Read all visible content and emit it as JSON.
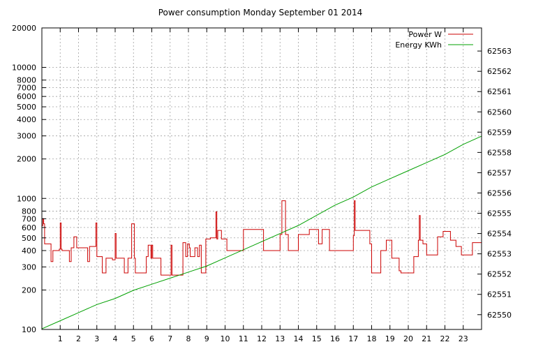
{
  "chart_data": {
    "type": "line",
    "title": "Power consumption Monday September 01 2014",
    "x": {
      "range": [
        0,
        24
      ],
      "ticks": [
        1,
        2,
        3,
        4,
        5,
        6,
        7,
        8,
        9,
        10,
        11,
        12,
        13,
        14,
        15,
        16,
        17,
        18,
        19,
        20,
        21,
        22,
        23
      ],
      "tick_labels": [
        "1",
        "2",
        "3",
        "4",
        "5",
        "6",
        "7",
        "8",
        "9",
        "10",
        "11",
        "12",
        "13",
        "14",
        "15",
        "16",
        "17",
        "18",
        "19",
        "20",
        "21",
        "22",
        "23"
      ]
    },
    "y_left": {
      "scale": "log",
      "range": [
        100,
        20000
      ],
      "ticks": [
        100,
        200,
        300,
        400,
        500,
        600,
        700,
        800,
        1000,
        2000,
        3000,
        4000,
        5000,
        6000,
        7000,
        8000,
        10000,
        20000
      ],
      "tick_labels": [
        "100",
        "200",
        "300",
        "400",
        "500",
        "600",
        "700",
        "800",
        "1000",
        "2000",
        "3000",
        "4000",
        "5000",
        "6000",
        "7000",
        "8000",
        "10000",
        "20000"
      ],
      "grid_ticks": [
        100,
        200,
        300,
        400,
        500,
        600,
        700,
        800,
        1000,
        2000,
        3000,
        4000,
        5000,
        6000,
        7000,
        8000,
        10000
      ]
    },
    "y_right": {
      "scale": "linear",
      "range": [
        62549.27,
        62564.14
      ],
      "ticks": [
        62550,
        62551,
        62552,
        62553,
        62554,
        62555,
        62556,
        62557,
        62558,
        62559,
        62560,
        62561,
        62562,
        62563
      ],
      "tick_labels": [
        "62550",
        "62551",
        "62552",
        "62553",
        "62554",
        "62555",
        "62556",
        "62557",
        "62558",
        "62559",
        "62560",
        "62561",
        "62562",
        "62563"
      ]
    },
    "grid": true,
    "legend_position": "top-right",
    "series": [
      {
        "name": "Power W",
        "axis": "left",
        "color": "#cc0000",
        "step": true,
        "x": [
          0,
          0.05,
          0.1,
          0.15,
          0.5,
          0.6,
          0.8,
          0.95,
          1.0,
          1.05,
          1.1,
          1.5,
          1.6,
          1.75,
          1.9,
          2.0,
          2.05,
          2.1,
          2.5,
          2.6,
          2.8,
          2.95,
          3.0,
          3.05,
          3.1,
          3.3,
          3.4,
          3.5,
          3.85,
          4.0,
          4.05,
          4.1,
          4.5,
          4.7,
          4.9,
          5.05,
          5.1,
          5.6,
          5.7,
          5.8,
          5.95,
          6.0,
          6.05,
          6.1,
          6.5,
          6.9,
          7.05,
          7.1,
          7.6,
          7.7,
          7.85,
          7.95,
          8.05,
          8.1,
          8.35,
          8.5,
          8.6,
          8.7,
          8.95,
          9.2,
          9.5,
          9.55,
          9.6,
          9.8,
          10.1,
          10.3,
          10.9,
          11.0,
          11.1,
          11.6,
          11.65,
          11.7,
          12.1,
          12.3,
          12.6,
          13.0,
          13.1,
          13.3,
          13.45,
          13.5,
          13.6,
          14.0,
          14.6,
          14.65,
          14.7,
          15.1,
          15.3,
          15.7,
          15.9,
          16.0,
          16.1,
          16.6,
          16.9,
          17.0,
          17.05,
          17.1,
          17.5,
          17.9,
          18.0,
          18.05,
          18.3,
          18.5,
          18.8,
          19.0,
          19.1,
          19.5,
          19.6,
          19.7,
          20.0,
          20.3,
          20.55,
          20.6,
          20.65,
          20.8,
          21.0,
          21.2,
          21.6,
          21.9,
          22.3,
          22.6,
          22.9,
          23.2,
          23.5,
          23.7,
          24.0
        ],
        "y": [
          620,
          700,
          640,
          450,
          330,
          400,
          400,
          410,
          650,
          410,
          400,
          330,
          420,
          510,
          420,
          420,
          420,
          420,
          330,
          430,
          430,
          650,
          360,
          360,
          360,
          270,
          270,
          350,
          340,
          540,
          350,
          350,
          270,
          350,
          640,
          350,
          270,
          270,
          360,
          440,
          350,
          440,
          350,
          350,
          260,
          260,
          440,
          260,
          260,
          460,
          360,
          450,
          420,
          360,
          420,
          360,
          440,
          270,
          490,
          500,
          790,
          490,
          570,
          490,
          400,
          400,
          400,
          580,
          580,
          580,
          580,
          580,
          400,
          400,
          400,
          530,
          960,
          530,
          400,
          400,
          400,
          530,
          580,
          580,
          580,
          450,
          580,
          400,
          400,
          400,
          400,
          400,
          400,
          520,
          960,
          570,
          570,
          450,
          270,
          270,
          270,
          400,
          480,
          480,
          350,
          280,
          270,
          270,
          270,
          360,
          480,
          740,
          480,
          450,
          370,
          370,
          510,
          560,
          480,
          430,
          370,
          370,
          460,
          460,
          460
        ]
      },
      {
        "name": "Energy KWh",
        "axis": "right",
        "color": "#00a000",
        "step": false,
        "x": [
          0,
          1,
          2,
          3,
          4,
          5,
          6,
          7,
          8,
          9,
          10,
          11,
          12,
          13,
          14,
          15,
          16,
          17,
          18,
          19,
          20,
          21,
          22,
          23,
          24
        ],
        "y": [
          62549.3,
          62549.7,
          62550.1,
          62550.5,
          62550.8,
          62551.2,
          62551.5,
          62551.8,
          62552.1,
          62552.4,
          62552.8,
          62553.2,
          62553.6,
          62554.0,
          62554.4,
          62554.9,
          62555.4,
          62555.8,
          62556.3,
          62556.7,
          62557.1,
          62557.5,
          62557.9,
          62558.4,
          62558.8
        ]
      }
    ]
  }
}
